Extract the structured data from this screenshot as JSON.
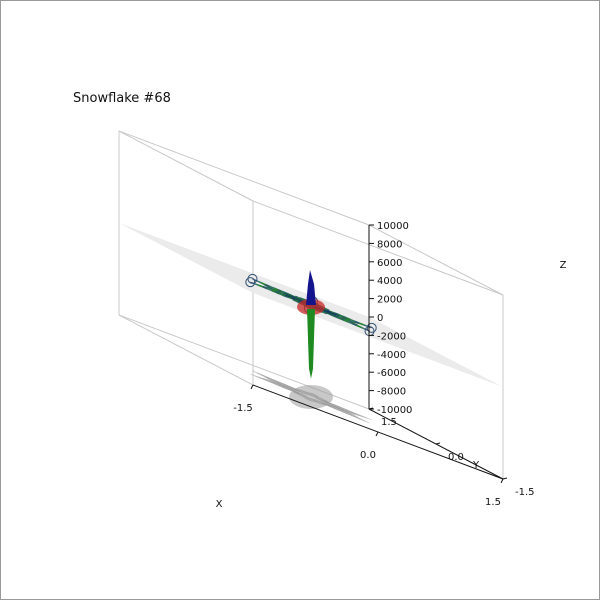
{
  "chart_data": {
    "type": "3d-surface",
    "title": "Snowflake #68",
    "xlabel": "X",
    "ylabel": "Y",
    "zlabel": "Z",
    "xlim": [
      -1.5,
      1.5
    ],
    "ylim": [
      -1.5,
      1.5
    ],
    "zlim": [
      -10000,
      10000
    ],
    "x_ticks": [
      "-1.5",
      "0.0",
      "1.5"
    ],
    "y_ticks": [
      "1.5",
      "0.0",
      "-1.5"
    ],
    "z_ticks": [
      "10000",
      "8000",
      "6000",
      "4000",
      "2000",
      "0",
      "-2000",
      "-4000",
      "-6000",
      "-8000",
      "-10000"
    ],
    "symmetry": 6,
    "colors": {
      "outer": "#2f4f6f",
      "teal": "#3a7a6a",
      "green": "#1f8a1f",
      "blue": "#14148c",
      "red": "#c82828",
      "plane": "#e9e9e9",
      "shadow": "#9a9a9a",
      "box": "#c8c8c8"
    },
    "grid": false
  }
}
